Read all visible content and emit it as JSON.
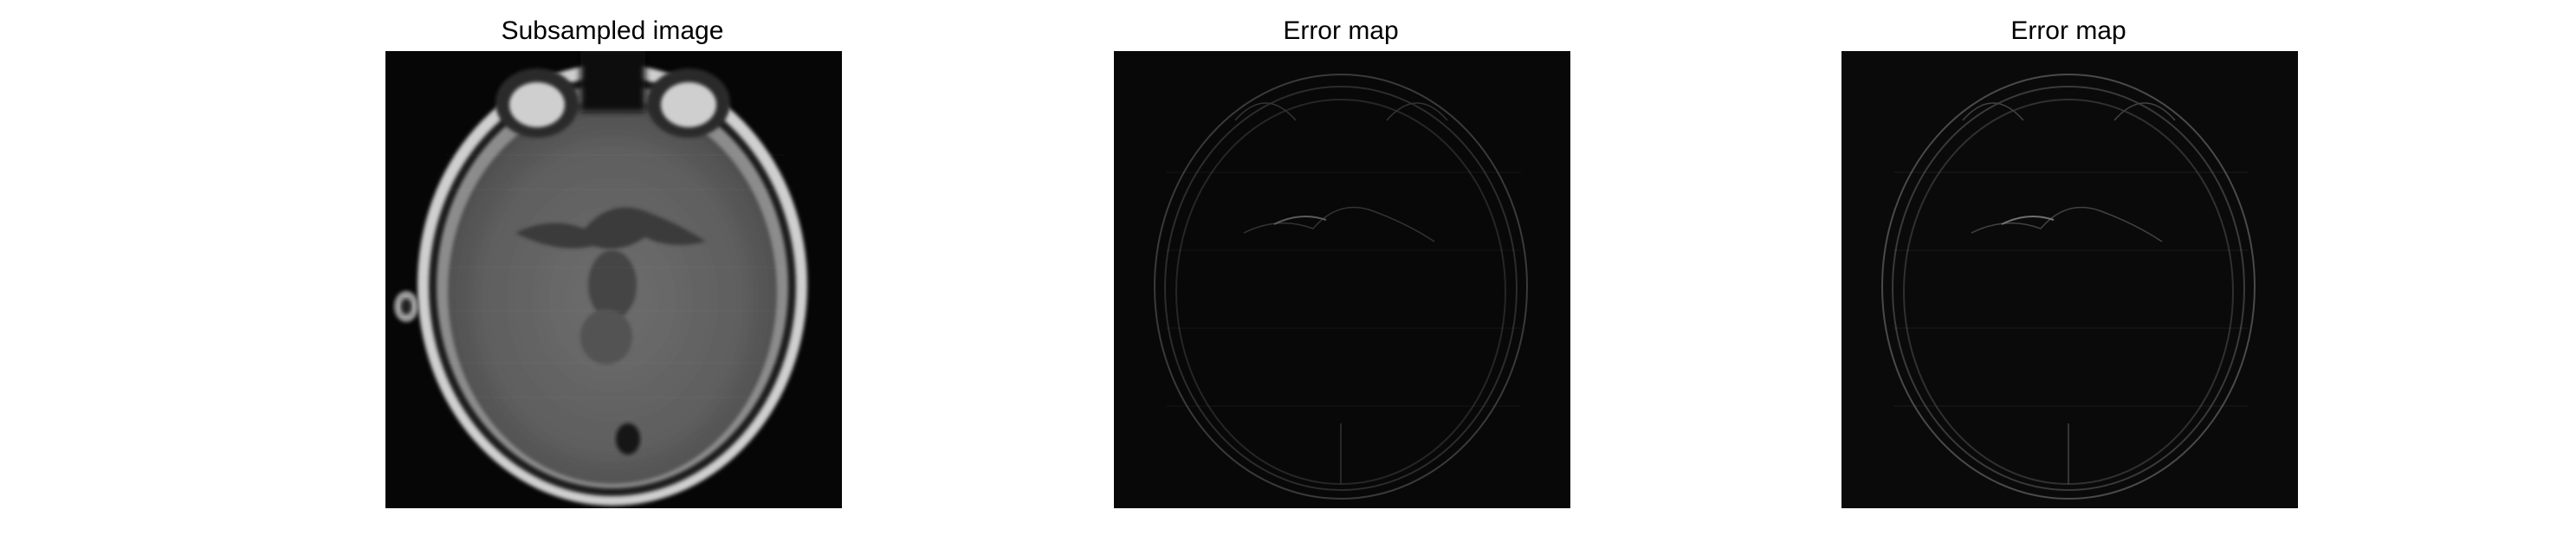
{
  "panels": [
    {
      "title": "Subsampled image"
    },
    {
      "title": "Error map"
    },
    {
      "title": "Error map"
    }
  ]
}
